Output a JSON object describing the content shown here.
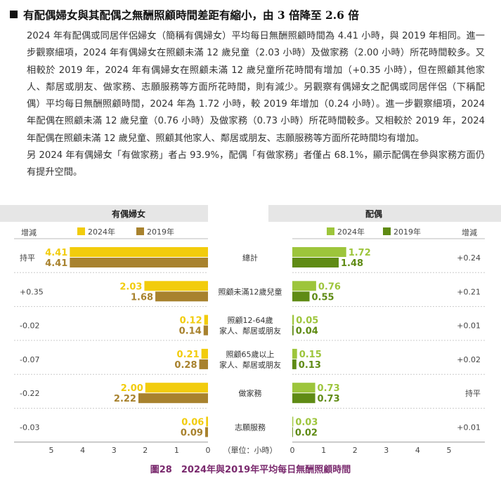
{
  "heading": "有配偶婦女與其配偶之無酬照顧時間差距有縮小，由 3 倍降至 2.6 倍",
  "paragraphs": [
    "2024 年有配偶或同居伴侶婦女（簡稱有偶婦女）平均每日無酬照顧時間為 4.41 小時，與 2019 年相同。進一步觀察細項，2024 年有偶婦女在照顧未滿 12 歲兒童（2.03 小時）及做家務（2.00 小時）所花時間較多。又相較於 2019 年，2024 年有偶婦女在照顧未滿 12 歲兒童所花時間有增加（+0.35 小時），但在照顧其他家人、鄰居或朋友、做家務、志願服務等方面所花時間，則有減少。另觀察有偶婦女之配偶或同居伴侶（下稱配偶）平均每日無酬照顧時間，2024 年為 1.72 小時，較 2019 年增加（0.24 小時）。進一步觀察細項，2024 年配偶在照顧未滿 12 歲兒童（0.76 小時）及做家務（0.73 小時）所花時間較多。又相較於 2019 年，2024 年配偶在照顧未滿 12 歲兒童、照顧其他家人、鄰居或朋友、志願服務等方面所花時間均有增加。",
    "另 2024 年有偶婦女「有做家務」者占 93.9%，配偶「有做家務」者僅占 68.1%，顯示配偶在參與家務方面仍有提升空間。"
  ],
  "caption": "圖28　2024年與2019年平均每日無酬照顧時間",
  "colors": {
    "women_2024": "#f2cc0c",
    "women_2019": "#a8822e",
    "men_2024": "#9dc53b",
    "men_2019": "#5f8b14",
    "header_band": "#e6e6e6"
  },
  "chart_data": {
    "type": "bar",
    "left_panel": {
      "title": "有偶婦女",
      "change_header": "增減",
      "series": [
        {
          "name": "2024年",
          "values": [
            4.41,
            2.03,
            0.12,
            0.21,
            2.0,
            0.06
          ]
        },
        {
          "name": "2019年",
          "values": [
            4.41,
            1.68,
            0.14,
            0.28,
            2.22,
            0.09
          ]
        }
      ],
      "changes": [
        "持平",
        "+0.35",
        "-0.02",
        "-0.07",
        "-0.22",
        "-0.03"
      ],
      "value_labels_2024": [
        "4.41",
        "2.03",
        "0.12",
        "0.21",
        "2.00",
        "0.06"
      ],
      "value_labels_2019": [
        "4.41",
        "1.68",
        "0.14",
        "0.28",
        "2.22",
        "0.09"
      ],
      "xlim": [
        0,
        5
      ],
      "ticks": [
        "5",
        "4",
        "3",
        "2",
        "1",
        "0"
      ]
    },
    "right_panel": {
      "title": "配偶",
      "change_header": "增減",
      "series": [
        {
          "name": "2024年",
          "values": [
            1.72,
            0.76,
            0.05,
            0.15,
            0.73,
            0.03
          ]
        },
        {
          "name": "2019年",
          "values": [
            1.48,
            0.55,
            0.04,
            0.13,
            0.73,
            0.02
          ]
        }
      ],
      "changes": [
        "+0.24",
        "+0.21",
        "+0.01",
        "+0.02",
        "持平",
        "+0.01"
      ],
      "value_labels_2024": [
        "1.72",
        "0.76",
        "0.05",
        "0.15",
        "0.73",
        "0.03"
      ],
      "value_labels_2019": [
        "1.48",
        "0.55",
        "0.04",
        "0.13",
        "0.73",
        "0.02"
      ],
      "xlim": [
        0,
        5
      ],
      "ticks": [
        "0",
        "1",
        "2",
        "3",
        "4",
        "5"
      ]
    },
    "categories": [
      [
        "總計"
      ],
      [
        "照顧未滿12歲兒童"
      ],
      [
        "照顧12-64歲",
        "家人、鄰居或朋友"
      ],
      [
        "照顧65歲以上",
        "家人、鄰居或朋友"
      ],
      [
        "做家務"
      ],
      [
        "志願服務"
      ]
    ],
    "unit_label": "（單位：小時）"
  }
}
